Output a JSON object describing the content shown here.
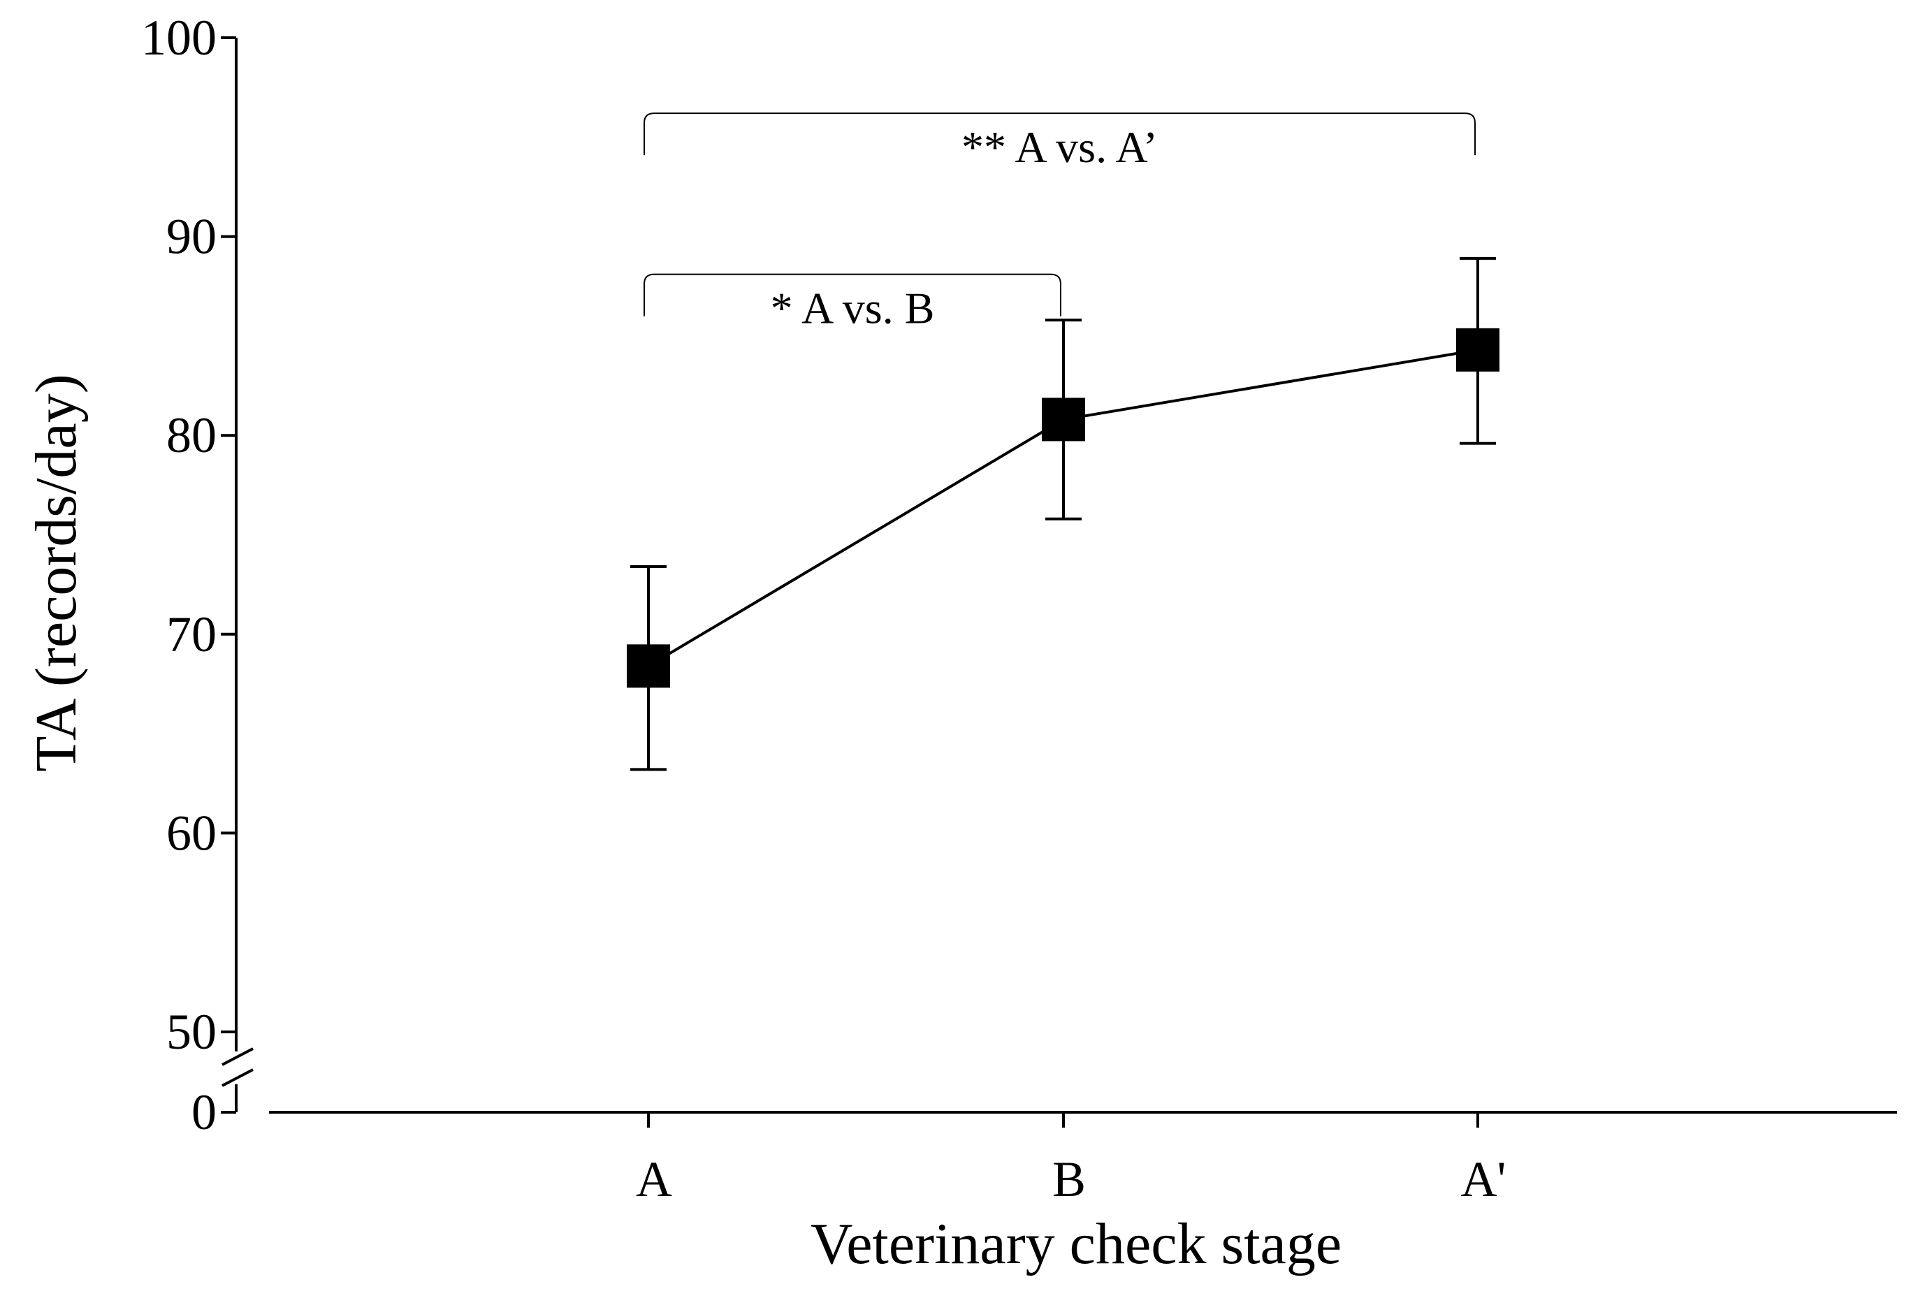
{
  "chart_data": {
    "type": "line",
    "title": "",
    "xlabel": "Veterinary check stage",
    "ylabel": "TA (records/day)",
    "categories": [
      "A",
      "B",
      "A'"
    ],
    "series": [
      {
        "name": "TA",
        "values": [
          68.4,
          80.8,
          84.3
        ],
        "error_upper": [
          73.4,
          85.8,
          88.9
        ],
        "error_lower": [
          63.2,
          75.8,
          79.6
        ]
      }
    ],
    "yticks": [
      {
        "value": 0,
        "label": "0"
      },
      {
        "value": 50,
        "label": "50"
      },
      {
        "value": 60,
        "label": "60"
      },
      {
        "value": 70,
        "label": "70"
      },
      {
        "value": 80,
        "label": "80"
      },
      {
        "value": 90,
        "label": "90"
      },
      {
        "value": 100,
        "label": "100"
      }
    ],
    "ylim": [
      50,
      100
    ],
    "y_axis_break": true,
    "grid": false,
    "annotations": [
      {
        "text": "* A vs. B",
        "from": "A",
        "to": "B",
        "bracket_y": 88.1
      },
      {
        "text": "** A vs. A’",
        "from": "A",
        "to": "A'",
        "bracket_y": 96.2
      }
    ]
  }
}
